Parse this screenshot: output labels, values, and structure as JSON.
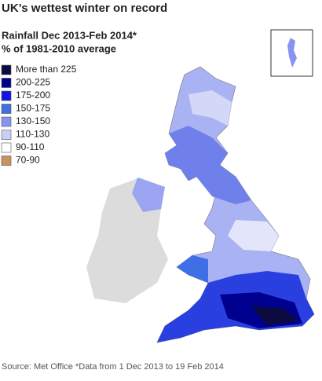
{
  "title": "UK’s wettest winter on record",
  "subtitle": [
    "Rainfall Dec 2013-Feb 2014*",
    "% of 1981-2010 average"
  ],
  "legend": {
    "items": [
      {
        "label": "More than 225",
        "color": "#0b0b3f"
      },
      {
        "label": "200-225",
        "color": "#00008f"
      },
      {
        "label": "175-200",
        "color": "#1414e0"
      },
      {
        "label": "150-175",
        "color": "#3f6fe6"
      },
      {
        "label": "130-150",
        "color": "#8793ee"
      },
      {
        "label": "110-130",
        "color": "#c9cff7"
      },
      {
        "label": "90-110",
        "color": "#ffffff"
      },
      {
        "label": "70-90",
        "color": "#c8935c"
      }
    ]
  },
  "source": "Source: Met Office *Data from 1 Dec 2013 to 19 Feb 2014"
}
